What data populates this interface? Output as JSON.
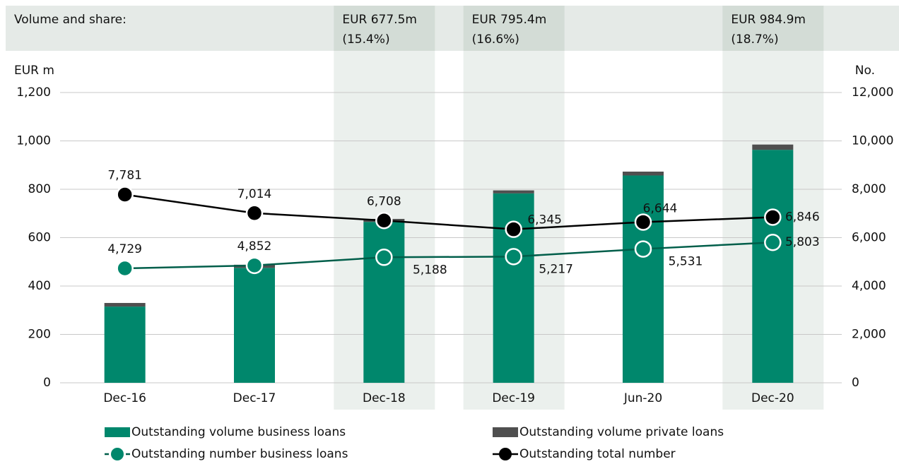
{
  "chart_data": {
    "type": "bar_line",
    "title": "Volume and share:",
    "ylabel": "EUR m",
    "y2label": "No.",
    "categories": [
      "Dec-16",
      "Dec-17",
      "Dec-18",
      "Dec-19",
      "Jun-20",
      "Dec-20"
    ],
    "top_labels": [
      null,
      null,
      [
        "EUR 677.5m",
        "(15.4%)"
      ],
      [
        "EUR 795.4m",
        "(16.6%)"
      ],
      null,
      [
        "EUR 984.9m",
        "(18.7%)"
      ]
    ],
    "series": [
      {
        "name": "Outstanding volume business loans",
        "type": "bar",
        "color": "#00876c",
        "values": [
          315,
          475,
          665,
          783,
          857,
          963
        ]
      },
      {
        "name": "Outstanding volume private loans",
        "type": "bar",
        "color": "#4f4f4f",
        "values": [
          15,
          13,
          12.5,
          12.4,
          16,
          21.9
        ]
      },
      {
        "name": "Outstanding number business loans",
        "type": "line",
        "axis": "y2",
        "color": "#00876c",
        "line_color": "#005e4a",
        "values": [
          4729,
          4852,
          5188,
          5217,
          5531,
          5803
        ],
        "value_labels": [
          "4,729",
          "4,852",
          "5,188",
          "5,217",
          "5,531",
          "5,803"
        ]
      },
      {
        "name": "Outstanding total number",
        "type": "line",
        "axis": "y2",
        "color": "#000000",
        "line_color": "#000000",
        "values": [
          7781,
          7014,
          6708,
          6345,
          6644,
          6846
        ],
        "value_labels": [
          "7,781",
          "7,014",
          "6,708",
          "6,345",
          "6,644",
          "6,846"
        ]
      }
    ],
    "ylim": [
      0,
      1200
    ],
    "yticks": [
      0,
      200,
      400,
      600,
      800,
      {
        "value": 1000,
        "label": "1,000"
      },
      {
        "value": 1200,
        "label": "1,200"
      }
    ],
    "y2lim": [
      0,
      12000
    ],
    "y2ticks": [
      0,
      {
        "value": 2000,
        "label": "2,000"
      },
      {
        "value": 4000,
        "label": "4,000"
      },
      {
        "value": 6000,
        "label": "6,000"
      },
      {
        "value": 8000,
        "label": "8,000"
      },
      {
        "value": 10000,
        "label": "10,000"
      },
      {
        "value": 12000,
        "label": "12,000"
      }
    ],
    "grid": true
  }
}
